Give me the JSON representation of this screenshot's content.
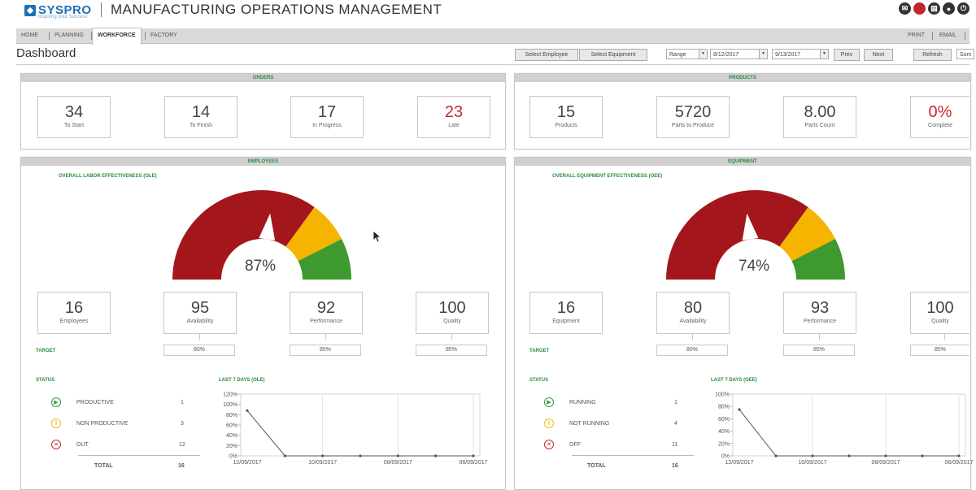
{
  "brand": {
    "logo": "SYSPRO",
    "tagline": "Inspiring your Success",
    "app_title": "MANUFACTURING OPERATIONS MANAGEMENT"
  },
  "nav": {
    "items": [
      "HOME",
      "PLANNING",
      "WORKFORCE",
      "FACTORY"
    ],
    "active": "WORKFORCE",
    "right": [
      "PRINT",
      "EMAIL"
    ]
  },
  "toolbar": {
    "page_title": "Dashboard",
    "select_employee": "Select Employee",
    "select_equipment": "Select Equipment",
    "range_label": "Range",
    "date_from": "8/12/2017",
    "date_to": "9/13/2017",
    "prev": "Prev",
    "next": "Next",
    "refresh": "Refresh",
    "summary": "Sum"
  },
  "orders": {
    "title": "ORDERS",
    "stats": [
      {
        "value": "34",
        "label": "To Start"
      },
      {
        "value": "14",
        "label": "To Finish"
      },
      {
        "value": "17",
        "label": "In Progress"
      },
      {
        "value": "23",
        "label": "Late"
      }
    ]
  },
  "products": {
    "title": "PRODUCTS",
    "stats": [
      {
        "value": "15",
        "label": "Products"
      },
      {
        "value": "5720",
        "label": "Parts to Produce"
      },
      {
        "value": "8.00",
        "label": "Parts Count"
      },
      {
        "value": "0%",
        "label": "Complete"
      }
    ]
  },
  "employees": {
    "title": "EMPLOYEES",
    "gauge_title": "OVERALL LABOR EFFECTIVENESS (OLE)",
    "gauge_value": "87%",
    "gauge_level": 0.87,
    "metrics": [
      {
        "value": "16",
        "label": "Employees"
      },
      {
        "value": "95",
        "label": "Availability"
      },
      {
        "value": "92",
        "label": "Performance"
      },
      {
        "value": "100",
        "label": "Quality"
      }
    ],
    "target_label": "TARGET",
    "targets": [
      "80%",
      "85%",
      "85%"
    ],
    "status_title": "STATUS",
    "status": [
      {
        "label": "PRODUCTIVE",
        "count": "1",
        "icon": "play-icon",
        "color": "#3a9a3a"
      },
      {
        "label": "NON PRODUCTIVE",
        "count": "3",
        "icon": "pause-icon",
        "color": "#e8c21a"
      },
      {
        "label": "OUT",
        "count": "12",
        "icon": "x-icon",
        "color": "#c8282d"
      }
    ],
    "total_label": "TOTAL",
    "total": "16",
    "chart_title": "LAST 7 DAYS (OLE)"
  },
  "equipment": {
    "title": "EQUIPMENT",
    "gauge_title": "OVERALL EQUIPMENT EFFECTIVENESS (OEE)",
    "gauge_value": "74%",
    "gauge_level": 0.74,
    "metrics": [
      {
        "value": "16",
        "label": "Equipment"
      },
      {
        "value": "80",
        "label": "Availability"
      },
      {
        "value": "93",
        "label": "Performance"
      },
      {
        "value": "100",
        "label": "Quality"
      }
    ],
    "target_label": "TARGET",
    "targets": [
      "80%",
      "85%",
      "85%"
    ],
    "status_title": "STATUS",
    "status": [
      {
        "label": "RUNNING",
        "count": "1",
        "icon": "play-icon",
        "color": "#3a9a3a"
      },
      {
        "label": "NOT RUNNING",
        "count": "4",
        "icon": "pause-icon",
        "color": "#e8c21a"
      },
      {
        "label": "OFF",
        "count": "11",
        "icon": "x-icon",
        "color": "#c8282d"
      }
    ],
    "total_label": "TOTAL",
    "total": "16",
    "chart_title": "LAST 7 DAYS (OEE)"
  },
  "colors": {
    "accent_green": "#2a8a3a",
    "gauge_red": "#a3161b",
    "gauge_yellow": "#f4b400",
    "gauge_green": "#3e9a2e",
    "late_red": "#c8282d"
  },
  "chart_data": [
    {
      "type": "line",
      "x": [
        "12/09/2017",
        "11/09/2017",
        "10/09/2017",
        "09/09/2017",
        "08/09/2017",
        "07/09/2017",
        "06/09/2017"
      ],
      "x_tick_labels": [
        "12/09/2017",
        "10/09/2017",
        "08/09/2017",
        "06/09/2017"
      ],
      "values": [
        88,
        0,
        0,
        0,
        0,
        0,
        0
      ],
      "ylim": [
        0,
        120
      ],
      "y_ticks": [
        "0%",
        "20%",
        "40%",
        "60%",
        "80%",
        "100%",
        "120%"
      ]
    },
    {
      "type": "line",
      "x": [
        "12/09/2017",
        "11/09/2017",
        "10/09/2017",
        "09/09/2017",
        "08/09/2017",
        "07/09/2017",
        "06/09/2017"
      ],
      "x_tick_labels": [
        "12/09/2017",
        "10/09/2017",
        "08/09/2017",
        "06/09/2017"
      ],
      "values": [
        75,
        0,
        0,
        0,
        0,
        0,
        0
      ],
      "ylim": [
        0,
        100
      ],
      "y_ticks": [
        "0%",
        "20%",
        "40%",
        "60%",
        "80%",
        "100%"
      ]
    }
  ]
}
